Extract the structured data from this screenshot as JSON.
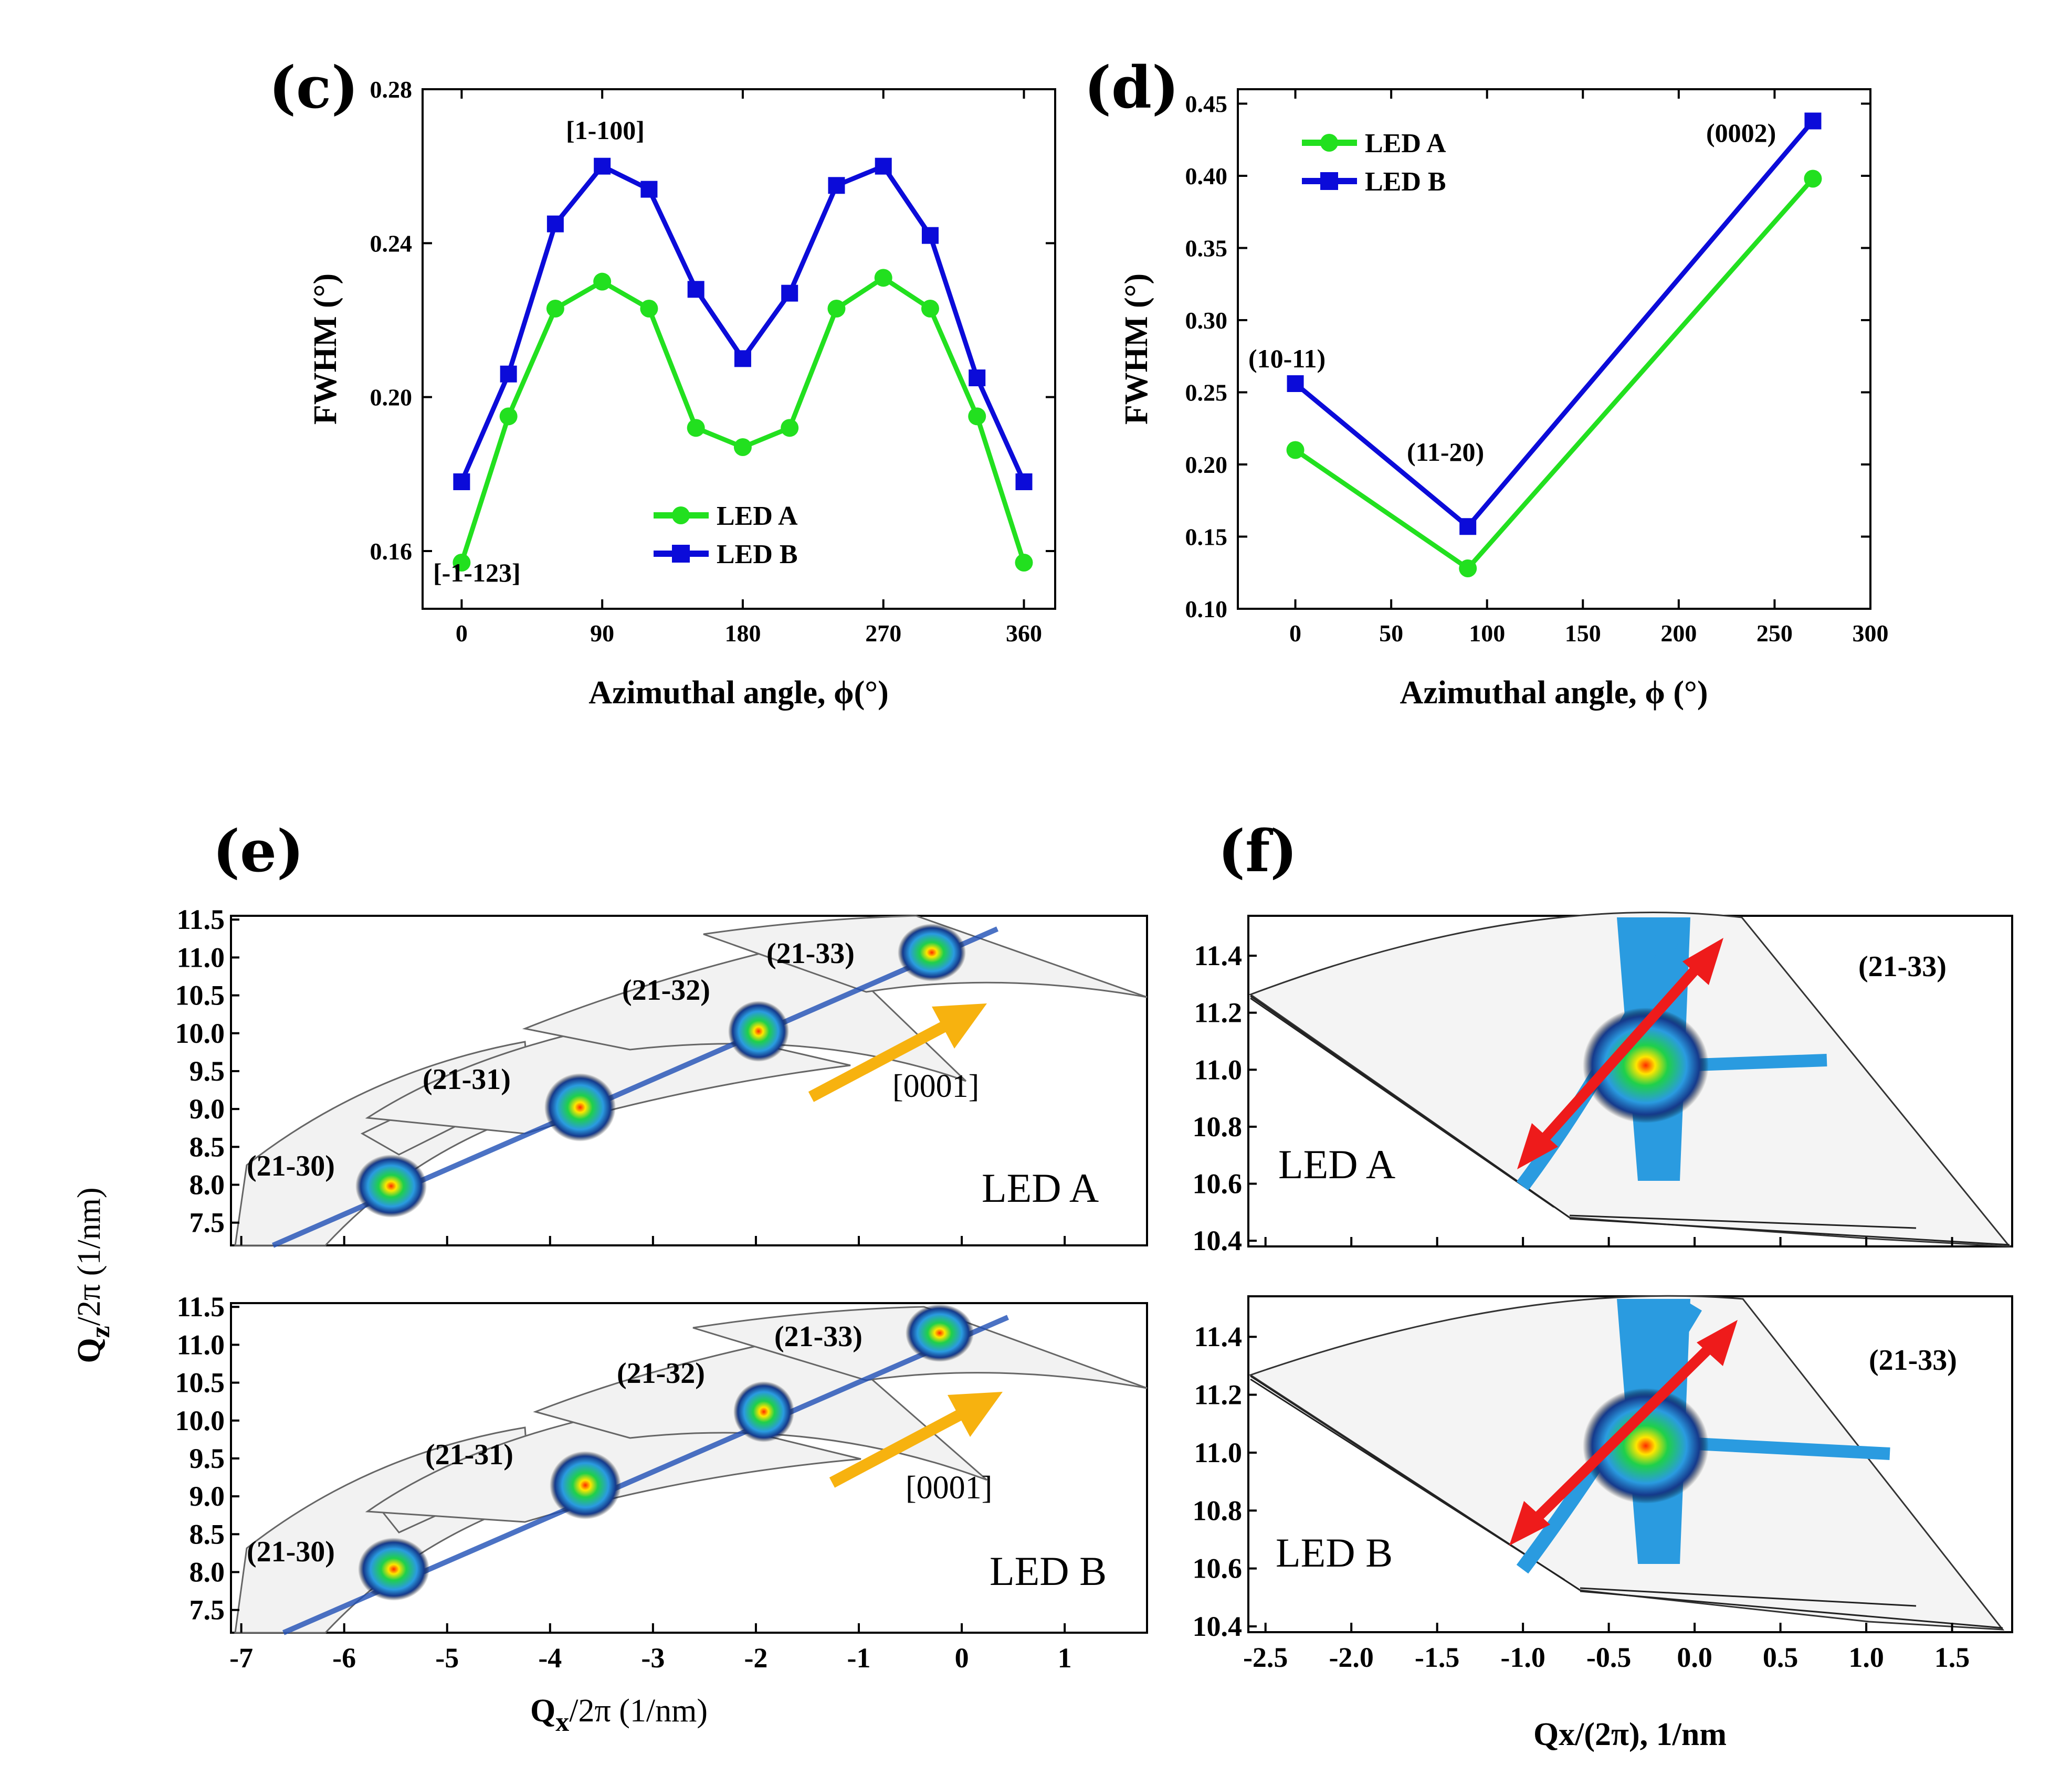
{
  "chart_data": [
    {
      "panel": "(c)",
      "type": "line",
      "xlabel": "Azimuthal angle, ϕ(°)",
      "ylabel": "FWHM (°)",
      "xlim": [
        -25,
        380
      ],
      "ylim": [
        0.145,
        0.28
      ],
      "xticks": [
        "0",
        "90",
        "180",
        "270",
        "360"
      ],
      "xtick_values": [
        0,
        90,
        180,
        270,
        360
      ],
      "yticks": [
        "0.16",
        "0.20",
        "0.24",
        "0.28"
      ],
      "ytick_values": [
        0.16,
        0.2,
        0.24,
        0.28
      ],
      "legend_position": "bottom-center",
      "x": [
        0,
        30,
        60,
        90,
        120,
        150,
        180,
        210,
        240,
        270,
        300,
        330,
        360
      ],
      "series": [
        {
          "name": "LED A",
          "color": "#22e01f",
          "marker": "circle",
          "values": [
            0.157,
            0.195,
            0.223,
            0.23,
            0.223,
            0.192,
            0.187,
            0.192,
            0.223,
            0.231,
            0.223,
            0.195,
            0.157
          ]
        },
        {
          "name": "LED B",
          "color": "#0b0bd9",
          "marker": "square",
          "values": [
            0.178,
            0.206,
            0.245,
            0.26,
            0.254,
            0.228,
            0.21,
            0.227,
            0.255,
            0.26,
            0.242,
            0.205,
            0.178
          ]
        }
      ],
      "annotations": [
        "[1-100]",
        "[-1-123]"
      ]
    },
    {
      "panel": "(d)",
      "type": "line",
      "xlabel": "Azimuthal angle, ϕ (°)",
      "ylabel": "FWHM (°)",
      "xlim": [
        -30,
        300
      ],
      "ylim": [
        0.1,
        0.46
      ],
      "xticks": [
        "0",
        "50",
        "100",
        "150",
        "200",
        "250",
        "300"
      ],
      "xtick_values": [
        0,
        50,
        100,
        150,
        200,
        250,
        300
      ],
      "yticks": [
        "0.10",
        "0.15",
        "0.20",
        "0.25",
        "0.30",
        "0.35",
        "0.40",
        "0.45"
      ],
      "ytick_values": [
        0.1,
        0.15,
        0.2,
        0.25,
        0.3,
        0.35,
        0.4,
        0.45
      ],
      "legend_position": "top-left",
      "x": [
        0,
        90,
        270
      ],
      "series": [
        {
          "name": "LED A",
          "color": "#22e01f",
          "marker": "circle",
          "values": [
            0.21,
            0.128,
            0.398
          ]
        },
        {
          "name": "LED B",
          "color": "#0b0bd9",
          "marker": "square",
          "values": [
            0.256,
            0.157,
            0.438
          ]
        }
      ],
      "annotations": [
        "(10-11)",
        "(11-20)",
        "(0002)"
      ]
    },
    {
      "panel": "(e)",
      "type": "heatmap",
      "xlabel": "Q",
      "xlabel_sub": "x",
      "xlabel_rest": "/2π (1/nm)",
      "ylabel": "Q",
      "ylabel_sub": "z",
      "ylabel_rest": "/2π (1/nm)",
      "xlim": [
        -7.1,
        1.8
      ],
      "ylim": [
        7.2,
        11.55
      ],
      "xticks": [
        "-7",
        "-6",
        "-5",
        "-4",
        "-3",
        "-2",
        "-1",
        "0",
        "1"
      ],
      "xtick_values": [
        -7,
        -6,
        -5,
        -4,
        -3,
        -2,
        -1,
        0,
        1
      ],
      "yticks": [
        "7.5",
        "8.0",
        "8.5",
        "9.0",
        "9.5",
        "10.0",
        "10.5",
        "11.0",
        "11.5"
      ],
      "ytick_values": [
        7.5,
        8.0,
        8.5,
        9.0,
        9.5,
        10.0,
        10.5,
        11.0,
        11.5
      ],
      "reflections": [
        "(21-30)",
        "(21-31)",
        "(21-32)",
        "(21-33)"
      ],
      "direction_label": "[0001]",
      "subplots": [
        "LED A",
        "LED B"
      ]
    },
    {
      "panel": "(f)",
      "type": "heatmap",
      "xlabel": "Qx/(2π), 1/nm",
      "xlim": [
        -2.6,
        1.85
      ],
      "ylim": [
        10.38,
        11.54
      ],
      "xticks": [
        "-2.5",
        "-2.0",
        "-1.5",
        "-1.0",
        "-0.5",
        "0.0",
        "0.5",
        "1.0",
        "1.5"
      ],
      "xtick_values": [
        -2.5,
        -2.0,
        -1.5,
        -1.0,
        -0.5,
        0.0,
        0.5,
        1.0,
        1.5
      ],
      "yticks": [
        "10.4",
        "10.6",
        "10.8",
        "11.0",
        "11.2",
        "11.4"
      ],
      "ytick_values": [
        10.4,
        10.6,
        10.8,
        11.0,
        11.2,
        11.4
      ],
      "reflection": "(21-33)",
      "subplots": [
        "LED A",
        "LED B"
      ]
    }
  ],
  "colors": {
    "led_a": "#22e01f",
    "led_b": "#0b0bd9",
    "arrow_orange": "#f7b20f",
    "arrow_red": "#ee1b1b"
  }
}
